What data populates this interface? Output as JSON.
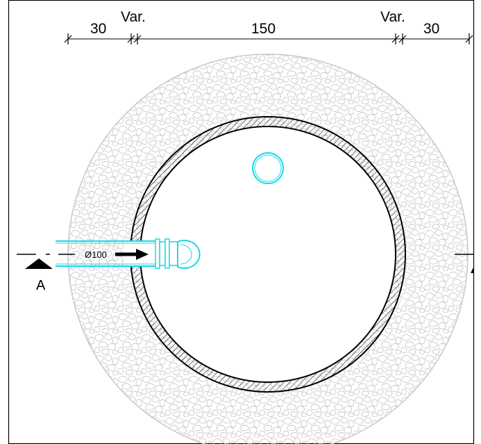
{
  "dimensions": {
    "left_gravel": "30",
    "left_var": "Var.",
    "inner": "150",
    "right_var": "Var.",
    "right_gravel": "30"
  },
  "pipe_label": "Ø100",
  "section_marker": "A",
  "colors": {
    "pipe": "#18d8e6",
    "gravel": "#c8c8c8",
    "line": "#000000",
    "frame": "#000000"
  }
}
